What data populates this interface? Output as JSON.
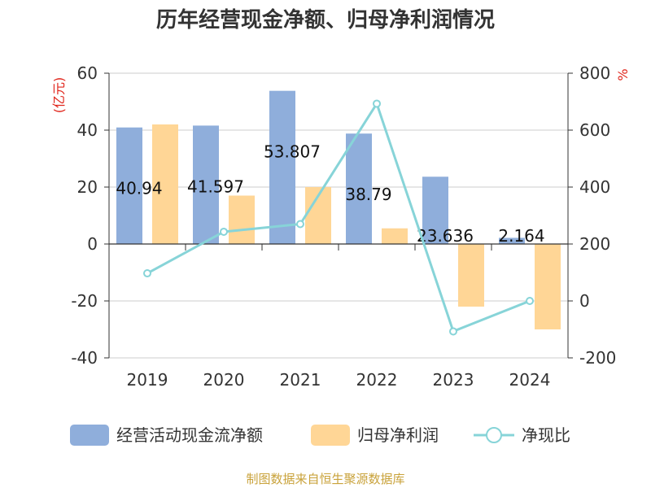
{
  "chart_data": {
    "type": "bar",
    "title": "历年经营现金净额、归母净利润情况",
    "categories": [
      "2019",
      "2020",
      "2021",
      "2022",
      "2023",
      "2024"
    ],
    "series": [
      {
        "name": "经营活动现金流净额",
        "kind": "bar",
        "axis": "left",
        "color": "#8FAEDB",
        "values": [
          40.94,
          41.597,
          53.807,
          38.79,
          23.636,
          2.164
        ],
        "labels": [
          "40.94",
          "41.597",
          "53.807",
          "38.79",
          "23.636",
          "2.164"
        ]
      },
      {
        "name": "归母净利润",
        "kind": "bar",
        "axis": "left",
        "color": "#FFD696",
        "values": [
          42.0,
          17.0,
          20.0,
          5.5,
          -22.0,
          -30.0
        ]
      },
      {
        "name": "净现比",
        "kind": "line",
        "axis": "right",
        "color": "#87D4D8",
        "values": [
          97,
          243,
          270,
          693,
          -107,
          0
        ]
      }
    ],
    "y_left": {
      "unit": "(亿元)",
      "min": -40,
      "max": 60,
      "ticks": [
        "60",
        "40",
        "20",
        "0",
        "-20",
        "-40"
      ],
      "tick_values": [
        60,
        40,
        20,
        0,
        -20,
        -40
      ]
    },
    "y_right": {
      "unit": "%",
      "min": -200,
      "max": 800,
      "ticks": [
        "800",
        "600",
        "400",
        "200",
        "0",
        "-200"
      ],
      "tick_values": [
        800,
        600,
        400,
        200,
        0,
        -200
      ]
    },
    "grid": true,
    "legend_position": "bottom",
    "source": "制图数据来自恒生聚源数据库",
    "colors": {
      "unit": "#E0251B",
      "source": "#C9A23A",
      "grid": "#CCCCCC",
      "axis": "#333333",
      "marker_fill": "#FFFFFF"
    }
  }
}
